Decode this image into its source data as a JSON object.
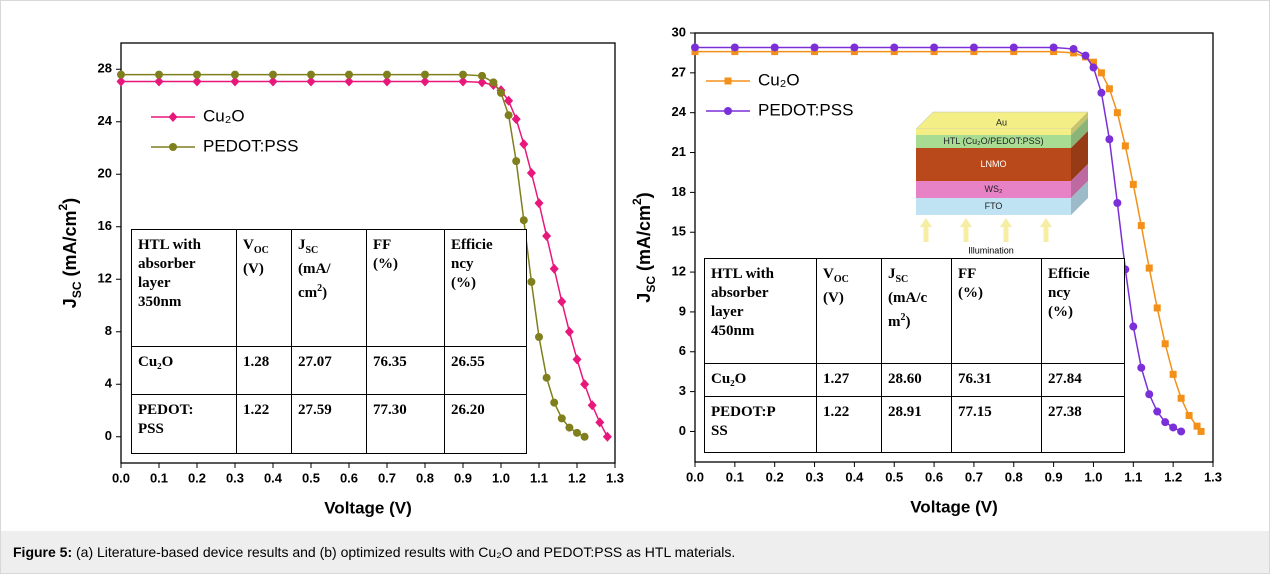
{
  "chart_data": [
    {
      "type": "line",
      "xlabel": "Voltage (V)",
      "ylabel": [
        {
          "text": "J"
        },
        {
          "text": "SC",
          "sub": true
        },
        {
          "text": " (mA/cm"
        },
        {
          "text": "2",
          "sup": true
        },
        {
          "text": ")"
        }
      ],
      "xlim": [
        0,
        1.3
      ],
      "ylim": [
        -2,
        30
      ],
      "xticks": [
        {
          "value": 0,
          "label": "0.0"
        },
        0.1,
        0.2,
        0.3,
        0.4,
        0.5,
        0.6,
        0.7,
        0.8,
        0.9,
        {
          "value": 1,
          "label": "1.0"
        },
        1.1,
        1.2,
        1.3
      ],
      "yticks": [
        0,
        4,
        8,
        12,
        16,
        20,
        24,
        28
      ],
      "legend": "upper left",
      "series": [
        {
          "name": "Cu₂O",
          "color": "#e8177c",
          "marker": "diamond",
          "x": [
            0,
            0.1,
            0.2,
            0.3,
            0.4,
            0.5,
            0.6,
            0.7,
            0.8,
            0.9,
            0.95,
            0.98,
            1.0,
            1.02,
            1.04,
            1.06,
            1.08,
            1.1,
            1.12,
            1.14,
            1.16,
            1.18,
            1.2,
            1.22,
            1.24,
            1.26,
            1.28
          ],
          "values": [
            27.07,
            27.07,
            27.07,
            27.07,
            27.07,
            27.07,
            27.07,
            27.07,
            27.07,
            27.07,
            27.0,
            26.8,
            26.4,
            25.6,
            24.2,
            22.3,
            20.1,
            17.8,
            15.3,
            12.8,
            10.3,
            8.0,
            5.9,
            4.0,
            2.4,
            1.1,
            0
          ]
        },
        {
          "name": "PEDOT:PSS",
          "color": "#7f7f1e",
          "marker": "circle",
          "x": [
            0,
            0.1,
            0.2,
            0.3,
            0.4,
            0.5,
            0.6,
            0.7,
            0.8,
            0.9,
            0.95,
            0.98,
            1.0,
            1.02,
            1.04,
            1.06,
            1.08,
            1.1,
            1.12,
            1.14,
            1.16,
            1.18,
            1.2,
            1.22
          ],
          "values": [
            27.59,
            27.59,
            27.59,
            27.59,
            27.59,
            27.59,
            27.59,
            27.59,
            27.59,
            27.59,
            27.5,
            27.0,
            26.2,
            24.5,
            21.0,
            16.5,
            11.8,
            7.6,
            4.5,
            2.6,
            1.4,
            0.7,
            0.3,
            0
          ]
        }
      ],
      "table": {
        "header": [
          [
            "HTL with",
            "absorber",
            "layer",
            "350nm"
          ],
          [
            [
              {
                "text": "V"
              },
              {
                "text": "OC",
                "sub": true
              }
            ],
            "(V)"
          ],
          [
            [
              {
                "text": "J"
              },
              {
                "text": "SC",
                "sub": true
              }
            ],
            "(mA/",
            [
              {
                "text": "cm"
              },
              {
                "text": "2",
                "sup": true
              },
              {
                "text": ")"
              }
            ]
          ],
          [
            "FF",
            "(%)"
          ],
          [
            "Efficie",
            "ncy",
            "(%)"
          ]
        ],
        "rows": [
          [
            [
              "Cu₂O"
            ],
            "1.28",
            "27.07",
            "76.35",
            "26.55"
          ],
          [
            [
              "PEDOT:",
              "PSS"
            ],
            "1.22",
            "27.59",
            "77.30",
            "26.20"
          ]
        ]
      }
    },
    {
      "type": "line",
      "xlabel": "Voltage (V)",
      "ylabel": [
        {
          "text": "J"
        },
        {
          "text": "SC",
          "sub": true
        },
        {
          "text": " (mA/cm"
        },
        {
          "text": "2",
          "sup": true
        },
        {
          "text": ")"
        }
      ],
      "xlim": [
        0,
        1.3
      ],
      "ylim": [
        -2.3,
        30
      ],
      "xticks": [
        {
          "value": 0,
          "label": "0.0"
        },
        0.1,
        0.2,
        0.3,
        0.4,
        0.5,
        0.6,
        0.7,
        0.8,
        0.9,
        {
          "value": 1,
          "label": "1.0"
        },
        1.1,
        1.2,
        1.3
      ],
      "yticks": [
        0,
        3,
        6,
        9,
        12,
        15,
        18,
        21,
        24,
        27,
        30
      ],
      "legend": "upper left",
      "series": [
        {
          "name": "Cu₂O",
          "color": "#f39019",
          "marker": "square",
          "x": [
            0,
            0.1,
            0.2,
            0.3,
            0.4,
            0.5,
            0.6,
            0.7,
            0.8,
            0.9,
            0.95,
            0.98,
            1.0,
            1.02,
            1.04,
            1.06,
            1.08,
            1.1,
            1.12,
            1.14,
            1.16,
            1.18,
            1.2,
            1.22,
            1.24,
            1.26,
            1.27
          ],
          "values": [
            28.6,
            28.6,
            28.6,
            28.6,
            28.6,
            28.6,
            28.6,
            28.6,
            28.6,
            28.6,
            28.5,
            28.2,
            27.8,
            27.0,
            25.8,
            24.0,
            21.5,
            18.6,
            15.5,
            12.3,
            9.3,
            6.6,
            4.3,
            2.5,
            1.2,
            0.4,
            0
          ]
        },
        {
          "name": "PEDOT:PSS",
          "color": "#7b2fd8",
          "marker": "circle",
          "x": [
            0,
            0.1,
            0.2,
            0.3,
            0.4,
            0.5,
            0.6,
            0.7,
            0.8,
            0.9,
            0.95,
            0.98,
            1.0,
            1.02,
            1.04,
            1.06,
            1.08,
            1.1,
            1.12,
            1.14,
            1.16,
            1.18,
            1.2,
            1.22
          ],
          "values": [
            28.91,
            28.91,
            28.91,
            28.91,
            28.91,
            28.91,
            28.91,
            28.91,
            28.91,
            28.91,
            28.8,
            28.3,
            27.4,
            25.5,
            22.0,
            17.2,
            12.2,
            7.9,
            4.8,
            2.8,
            1.5,
            0.7,
            0.3,
            0
          ]
        }
      ],
      "table": {
        "header": [
          [
            "HTL with",
            "absorber",
            "layer",
            "450nm"
          ],
          [
            [
              {
                "text": "V"
              },
              {
                "text": "OC",
                "sub": true
              }
            ],
            "(V)"
          ],
          [
            [
              {
                "text": "J"
              },
              {
                "text": "SC",
                "sub": true
              }
            ],
            "(mA/c",
            [
              {
                "text": "m"
              },
              {
                "text": "2",
                "sup": true
              },
              {
                "text": ")"
              }
            ]
          ],
          [
            "FF",
            "(%)"
          ],
          [
            "Efficie",
            "ncy",
            "(%)"
          ]
        ],
        "rows": [
          [
            [
              "Cu₂O"
            ],
            "1.27",
            "28.60",
            "76.31",
            "27.84"
          ],
          [
            [
              "PEDOT:P",
              "SS"
            ],
            "1.22",
            "28.91",
            "77.15",
            "27.38"
          ]
        ]
      },
      "inset": {
        "layers": [
          "Au",
          "HTL (Cu₂O/PEDOT:PSS)",
          "LNMO",
          "WS₂",
          "FTO"
        ],
        "colors": [
          "#f3ee86",
          "#a9dc93",
          "#b9491b",
          "#e882c6",
          "#bfe3f3"
        ],
        "caption": "Illumination"
      }
    }
  ],
  "caption": {
    "label": "Figure 5:",
    "text": " (a) Literature-based device results and (b) optimized results with Cu₂O and PEDOT:PSS as HTL materials."
  }
}
